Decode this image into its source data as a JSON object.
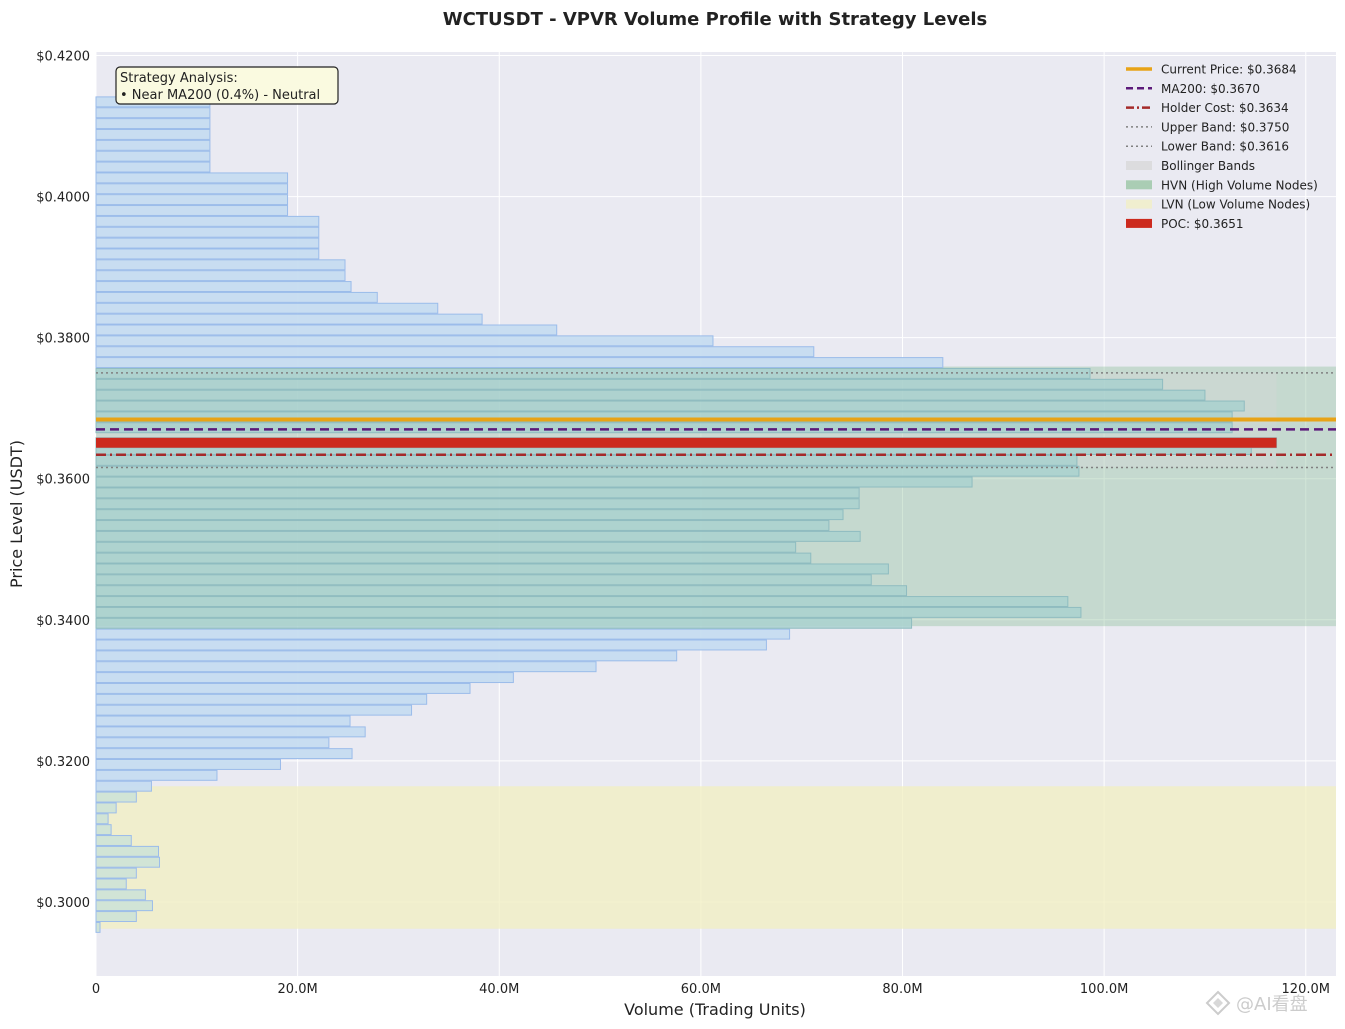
{
  "chart_data": {
    "type": "bar",
    "orientation": "horizontal",
    "title": "WCTUSDT - VPVR Volume Profile with Strategy Levels",
    "xlabel": "Volume (Trading Units)",
    "ylabel": "Price Level (USDT)",
    "xlim": [
      0,
      123000000
    ],
    "ylim": [
      0.2895,
      0.4205
    ],
    "xticks": [
      0,
      20000000,
      40000000,
      60000000,
      80000000,
      100000000,
      120000000
    ],
    "xtick_labels": [
      "0",
      "20.0M",
      "40.0M",
      "60.0M",
      "80.0M",
      "100.0M",
      "120.0M"
    ],
    "yticks": [
      0.3,
      0.32,
      0.34,
      0.36,
      0.38,
      0.4,
      0.42
    ],
    "ytick_labels": [
      "$0.3000",
      "$0.3200",
      "$0.3400",
      "$0.3600",
      "$0.3800",
      "$0.4000",
      "$0.4200"
    ],
    "grid": true,
    "legend_position": "top-right",
    "bin_height": 0.00141,
    "profile": [
      {
        "price": 0.29639,
        "volume": 400000
      },
      {
        "price": 0.29793,
        "volume": 4000000
      },
      {
        "price": 0.29947,
        "volume": 5600000
      },
      {
        "price": 0.30101,
        "volume": 4900000
      },
      {
        "price": 0.30255,
        "volume": 3000000
      },
      {
        "price": 0.30409,
        "volume": 4000000
      },
      {
        "price": 0.30563,
        "volume": 6300000
      },
      {
        "price": 0.30717,
        "volume": 6200000
      },
      {
        "price": 0.30871,
        "volume": 3500000
      },
      {
        "price": 0.31025,
        "volume": 1500000
      },
      {
        "price": 0.31179,
        "volume": 1200000
      },
      {
        "price": 0.31333,
        "volume": 2000000
      },
      {
        "price": 0.31487,
        "volume": 4000000
      },
      {
        "price": 0.31641,
        "volume": 5500000
      },
      {
        "price": 0.31795,
        "volume": 12000000
      },
      {
        "price": 0.31949,
        "volume": 18300000
      },
      {
        "price": 0.32103,
        "volume": 25400000
      },
      {
        "price": 0.32257,
        "volume": 23100000
      },
      {
        "price": 0.32411,
        "volume": 26700000
      },
      {
        "price": 0.32565,
        "volume": 25200000
      },
      {
        "price": 0.32719,
        "volume": 31300000
      },
      {
        "price": 0.32873,
        "volume": 32800000
      },
      {
        "price": 0.33027,
        "volume": 37100000
      },
      {
        "price": 0.33181,
        "volume": 41400000
      },
      {
        "price": 0.33335,
        "volume": 49600000
      },
      {
        "price": 0.33489,
        "volume": 57600000
      },
      {
        "price": 0.33643,
        "volume": 66500000
      },
      {
        "price": 0.33797,
        "volume": 68800000
      },
      {
        "price": 0.33951,
        "volume": 80900000
      },
      {
        "price": 0.34105,
        "volume": 97700000
      },
      {
        "price": 0.34259,
        "volume": 96400000
      },
      {
        "price": 0.34413,
        "volume": 80400000
      },
      {
        "price": 0.34567,
        "volume": 76900000
      },
      {
        "price": 0.34721,
        "volume": 78600000
      },
      {
        "price": 0.34875,
        "volume": 70900000
      },
      {
        "price": 0.35029,
        "volume": 69400000
      },
      {
        "price": 0.35183,
        "volume": 75800000
      },
      {
        "price": 0.35337,
        "volume": 72700000
      },
      {
        "price": 0.35491,
        "volume": 74100000
      },
      {
        "price": 0.35645,
        "volume": 75700000
      },
      {
        "price": 0.35799,
        "volume": 75700000
      },
      {
        "price": 0.35953,
        "volume": 86900000
      },
      {
        "price": 0.36107,
        "volume": 97500000
      },
      {
        "price": 0.36261,
        "volume": 97300000
      },
      {
        "price": 0.36415,
        "volume": 114600000
      },
      {
        "price": 0.3651,
        "volume": 117100000
      },
      {
        "price": 0.36723,
        "volume": 112700000
      },
      {
        "price": 0.36877,
        "volume": 112700000
      },
      {
        "price": 0.37031,
        "volume": 113900000
      },
      {
        "price": 0.37185,
        "volume": 110000000
      },
      {
        "price": 0.37339,
        "volume": 105800000
      },
      {
        "price": 0.37493,
        "volume": 98600000
      },
      {
        "price": 0.37647,
        "volume": 84000000
      },
      {
        "price": 0.37801,
        "volume": 71200000
      },
      {
        "price": 0.37955,
        "volume": 61200000
      },
      {
        "price": 0.38109,
        "volume": 45700000
      },
      {
        "price": 0.38263,
        "volume": 38300000
      },
      {
        "price": 0.38417,
        "volume": 33900000
      },
      {
        "price": 0.38571,
        "volume": 27900000
      },
      {
        "price": 0.38725,
        "volume": 25300000
      },
      {
        "price": 0.38879,
        "volume": 24700000
      },
      {
        "price": 0.39033,
        "volume": 24700000
      },
      {
        "price": 0.39187,
        "volume": 22100000
      },
      {
        "price": 0.39341,
        "volume": 22100000
      },
      {
        "price": 0.39495,
        "volume": 22100000
      },
      {
        "price": 0.39649,
        "volume": 22100000
      },
      {
        "price": 0.39803,
        "volume": 19000000
      },
      {
        "price": 0.39957,
        "volume": 19000000
      },
      {
        "price": 0.40111,
        "volume": 19000000
      },
      {
        "price": 0.40265,
        "volume": 19000000
      },
      {
        "price": 0.40419,
        "volume": 11300000
      },
      {
        "price": 0.40573,
        "volume": 11300000
      },
      {
        "price": 0.40727,
        "volume": 11300000
      },
      {
        "price": 0.40881,
        "volume": 11300000
      },
      {
        "price": 0.41035,
        "volume": 11300000
      },
      {
        "price": 0.41189,
        "volume": 11300000
      },
      {
        "price": 0.41343,
        "volume": 11300000
      }
    ],
    "poc": {
      "price": 0.3651,
      "volume": 117100000
    },
    "hvn_zone": [
      0.3391,
      0.3759
    ],
    "lvn_zone": [
      0.2962,
      0.3164
    ],
    "bollinger_zone": [
      0.3616,
      0.375
    ],
    "bollinger_xmax": 117100000,
    "lines": {
      "current_price": 0.3684,
      "ma200": 0.367,
      "holder_cost": 0.3634,
      "upper_band": 0.375,
      "lower_band": 0.3616
    },
    "colors": {
      "bar_fill": "#c6dcf0",
      "bar_edge": "#9bbcea",
      "bar_fill_hvn": "#a9d1cf",
      "bar_edge_hvn": "#8fbcc0",
      "bar_fill_lvn": "#cfe3d6",
      "hvn": "#8fc09a",
      "lvn": "#f2efc0",
      "bollinger": "#d6d6d6",
      "current_price": "#e8a317",
      "ma200": "#5c1a7a",
      "holder_cost": "#a52a2a",
      "band": "#808080",
      "poc": "#cc2a1e",
      "plot_bg": "#eaeaf2"
    },
    "legend": [
      {
        "label": "Current Price: $0.3684",
        "style": "line-solid",
        "color": "#e8a317"
      },
      {
        "label": "MA200: $0.3670",
        "style": "line-dashed",
        "color": "#5c1a7a"
      },
      {
        "label": "Holder Cost: $0.3634",
        "style": "line-dashdot",
        "color": "#a52a2a"
      },
      {
        "label": "Upper Band: $0.3750",
        "style": "line-dotted",
        "color": "#808080"
      },
      {
        "label": "Lower Band: $0.3616",
        "style": "line-dotted",
        "color": "#808080"
      },
      {
        "label": "Bollinger Bands",
        "style": "patch",
        "color": "#d6d6d6"
      },
      {
        "label": "HVN (High Volume Nodes)",
        "style": "patch",
        "color": "#8fc09a"
      },
      {
        "label": "LVN (Low Volume Nodes)",
        "style": "patch",
        "color": "#f2efc0"
      },
      {
        "label": "POC: $0.3651",
        "style": "patch-solid",
        "color": "#cc2a1e"
      }
    ],
    "annotation": {
      "title": "Strategy Analysis:",
      "line": "• Near MA200 (0.4%) - Neutral"
    }
  },
  "watermark": "@AI看盘"
}
